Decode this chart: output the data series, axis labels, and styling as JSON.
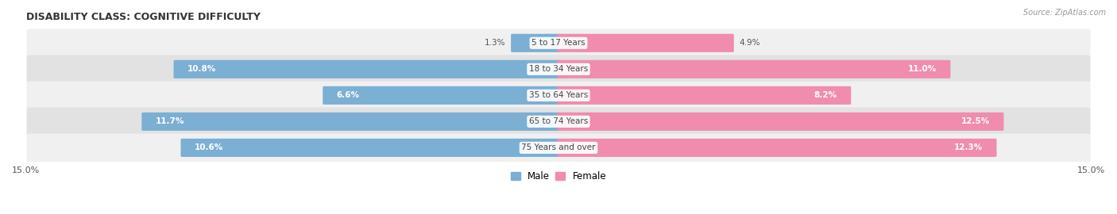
{
  "title": "DISABILITY CLASS: COGNITIVE DIFFICULTY",
  "source": "Source: ZipAtlas.com",
  "categories": [
    "5 to 17 Years",
    "18 to 34 Years",
    "35 to 64 Years",
    "65 to 74 Years",
    "75 Years and over"
  ],
  "male_values": [
    1.3,
    10.8,
    6.6,
    11.7,
    10.6
  ],
  "female_values": [
    4.9,
    11.0,
    8.2,
    12.5,
    12.3
  ],
  "x_max": 15.0,
  "male_color": "#7bafd4",
  "female_color": "#f08cad",
  "row_bg_color_light": "#f0f0f0",
  "row_bg_color_dark": "#e2e2e2",
  "legend_male": "Male",
  "legend_female": "Female"
}
